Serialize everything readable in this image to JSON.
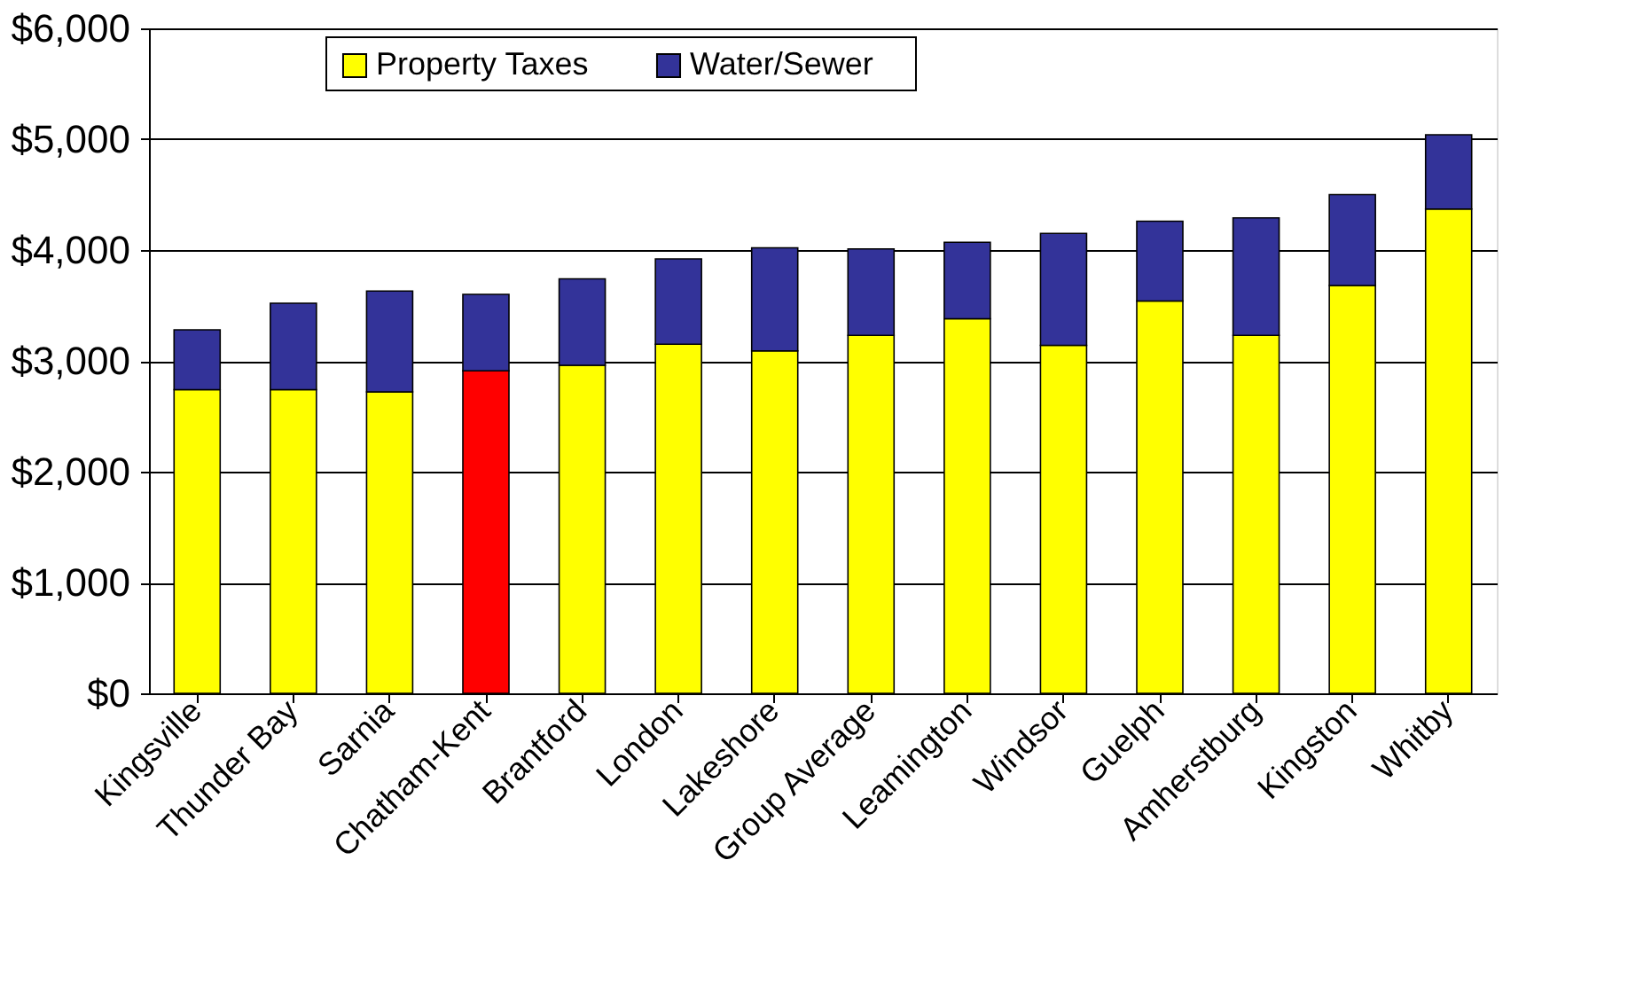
{
  "chart_data": {
    "type": "bar",
    "stacked": true,
    "categories": [
      "Kingsville",
      "Thunder Bay",
      "Sarnia",
      "Chatham-Kent",
      "Brantford",
      "London",
      "Lakeshore",
      "Group Average",
      "Leamington",
      "Windsor",
      "Guelph",
      "Amherstburg",
      "Kingston",
      "Whitby"
    ],
    "series": [
      {
        "name": "Property Taxes",
        "color": "#ffff00",
        "colors": [
          "#ffff00",
          "#ffff00",
          "#ffff00",
          "#ff0000",
          "#ffff00",
          "#ffff00",
          "#ffff00",
          "#ffff00",
          "#ffff00",
          "#ffff00",
          "#ffff00",
          "#ffff00",
          "#ffff00",
          "#ffff00"
        ],
        "values": [
          2740,
          2740,
          2720,
          2910,
          2960,
          3150,
          3090,
          3230,
          3380,
          3140,
          3540,
          3230,
          3680,
          4370
        ]
      },
      {
        "name": "Water/Sewer",
        "color": "#333399",
        "values": [
          540,
          780,
          910,
          690,
          780,
          770,
          930,
          780,
          690,
          1010,
          720,
          1060,
          820,
          670
        ]
      }
    ],
    "ylim": [
      0,
      6000
    ],
    "yticks": [
      {
        "value": 0,
        "label": "$0"
      },
      {
        "value": 1000,
        "label": "$1,000"
      },
      {
        "value": 2000,
        "label": "$2,000"
      },
      {
        "value": 3000,
        "label": "$3,000"
      },
      {
        "value": 4000,
        "label": "$4,000"
      },
      {
        "value": 5000,
        "label": "$5,000"
      },
      {
        "value": 6000,
        "label": "$6,000"
      }
    ],
    "grid": "y",
    "legend": "top"
  }
}
